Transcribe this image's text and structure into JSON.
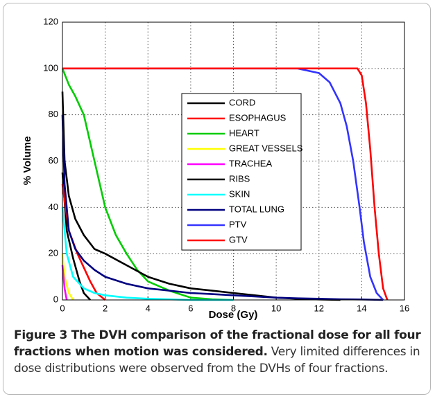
{
  "chart_data": {
    "type": "line",
    "xlabel": "Dose (Gy)",
    "ylabel": "% Volume",
    "xlim": [
      0,
      16
    ],
    "xticks": [
      0,
      2,
      4,
      6,
      8,
      10,
      12,
      14,
      16
    ],
    "ylim": [
      0,
      120
    ],
    "yticks": [
      0,
      20,
      40,
      60,
      80,
      100,
      120
    ],
    "grid": true,
    "series": [
      {
        "name": "CORD",
        "color": "#000000",
        "x": [
          0,
          0.2,
          0.5,
          0.8,
          1.0,
          1.3
        ],
        "values": [
          55,
          30,
          18,
          8,
          3,
          0
        ]
      },
      {
        "name": "ESOPHAGUS",
        "color": "#ff0000",
        "x": [
          0,
          0.3,
          0.7,
          1.0,
          1.3,
          1.6,
          2.0
        ],
        "values": [
          50,
          30,
          20,
          14,
          8,
          3,
          0
        ]
      },
      {
        "name": "HEART",
        "color": "#00cc00",
        "x": [
          0,
          0.3,
          0.6,
          1.0,
          1.5,
          2.0,
          2.5,
          3.0,
          3.5,
          4.0,
          5.0,
          6.0,
          7.0,
          8.0
        ],
        "values": [
          100,
          93,
          88,
          80,
          60,
          40,
          28,
          20,
          13,
          8,
          4,
          1,
          0.3,
          0
        ]
      },
      {
        "name": "GREAT VESSELS",
        "color": "#ffff00",
        "x": [
          0,
          0.1,
          0.3,
          0.5
        ],
        "values": [
          20,
          10,
          3,
          0
        ]
      },
      {
        "name": "TRACHEA",
        "color": "#ff00ff",
        "x": [
          0,
          0.1,
          0.2
        ],
        "values": [
          15,
          5,
          0
        ]
      },
      {
        "name": "RIBS",
        "color": "#000000",
        "x": [
          0,
          0.1,
          0.3,
          0.6,
          1.0,
          1.5,
          2.0,
          3.0,
          4.0,
          5.0,
          6.0,
          7.0,
          8.0,
          9.0,
          10.0,
          11.0,
          12.0,
          13.0
        ],
        "values": [
          90,
          60,
          45,
          35,
          28,
          22,
          20,
          15,
          10,
          7,
          5,
          4,
          3,
          2,
          1,
          0.5,
          0.2,
          0
        ]
      },
      {
        "name": "SKIN",
        "color": "#00ffff",
        "x": [
          0,
          0.2,
          0.5,
          1.0,
          1.5,
          2.0,
          3.0,
          4.0,
          6.0,
          8.0
        ],
        "values": [
          40,
          20,
          10,
          5,
          3,
          2,
          1,
          0.5,
          0,
          0
        ]
      },
      {
        "name": "TOTAL LUNG",
        "color": "#000080",
        "x": [
          0,
          0.1,
          0.3,
          0.6,
          1.0,
          1.5,
          2.0,
          3.0,
          4.0,
          5.0,
          6.0,
          7.0,
          8.0,
          9.0,
          10.0,
          11.0,
          12.0,
          13.0,
          14.0,
          15.0
        ],
        "values": [
          80,
          50,
          30,
          22,
          17,
          13,
          10,
          7,
          5,
          4,
          3,
          2.5,
          2,
          1.5,
          1,
          0.7,
          0.5,
          0.3,
          0.2,
          0
        ]
      },
      {
        "name": "PTV",
        "color": "#3333ff",
        "x": [
          0,
          11.0,
          12.0,
          12.5,
          13.0,
          13.3,
          13.6,
          13.9,
          14.1,
          14.4,
          14.7,
          15.0
        ],
        "values": [
          100,
          100,
          98,
          94,
          85,
          75,
          60,
          40,
          25,
          10,
          3,
          0
        ]
      },
      {
        "name": "GTV",
        "color": "#ff0000",
        "x": [
          0,
          13.8,
          14.0,
          14.2,
          14.4,
          14.6,
          14.8,
          15.0,
          15.2
        ],
        "values": [
          100,
          100,
          97,
          85,
          65,
          40,
          20,
          5,
          0
        ]
      }
    ]
  },
  "caption": {
    "label": "Figure 3 The DVH comparison of the fractional dose for all four fractions when motion was considered.",
    "text": "Very limited differences in dose distributions were observed from the DVHs of four fractions."
  }
}
